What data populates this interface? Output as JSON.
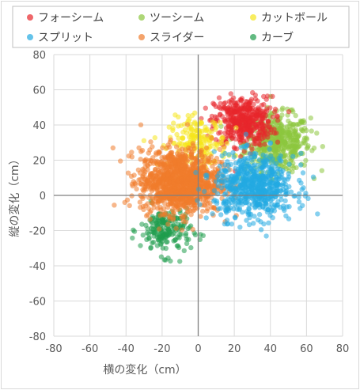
{
  "chart_data": {
    "type": "scatter",
    "title": "",
    "xlabel": "横の変化（cm）",
    "ylabel": "縦の変化（cm）",
    "xlim": [
      -80,
      80
    ],
    "ylim": [
      -80,
      80
    ],
    "x_ticks": [
      "-80",
      "-60",
      "-40",
      "-20",
      "0",
      "20",
      "40",
      "60",
      "80"
    ],
    "y_ticks": [
      "80",
      "60",
      "40",
      "20",
      "0",
      "-20",
      "-40",
      "-60",
      "-80"
    ],
    "grid": true,
    "legend_position": "top",
    "series": [
      {
        "name": "フォーシーム",
        "color": "#e8262b",
        "center": [
          25,
          42
        ],
        "spread": [
          8,
          7
        ],
        "count": 450
      },
      {
        "name": "ツーシーム",
        "color": "#8cc63e",
        "center": [
          44,
          30
        ],
        "spread": [
          9,
          8
        ],
        "count": 500
      },
      {
        "name": "カットボール",
        "color": "#f5e61c",
        "center": [
          0,
          30
        ],
        "spread": [
          8,
          7
        ],
        "count": 200
      },
      {
        "name": "スプリット",
        "color": "#22a9e1",
        "center": [
          31,
          5
        ],
        "spread": [
          11,
          9
        ],
        "count": 650
      },
      {
        "name": "スライダー",
        "color": "#f07c2c",
        "center": [
          -10,
          8
        ],
        "spread": [
          11,
          9
        ],
        "count": 1200
      },
      {
        "name": "カーブ",
        "color": "#1f9c4c",
        "center": [
          -18,
          -20
        ],
        "spread": [
          7,
          7
        ],
        "count": 200
      }
    ]
  }
}
